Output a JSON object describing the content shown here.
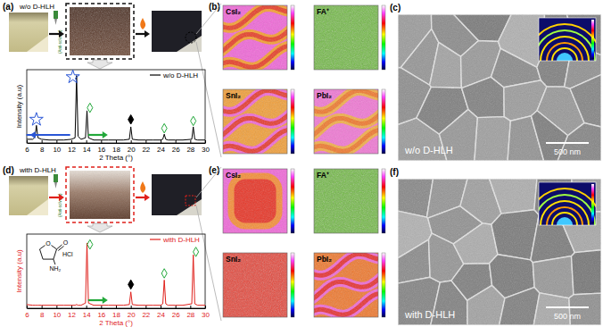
{
  "chart_data": [
    {
      "type": "line",
      "x": [
        6,
        6.8,
        7.1,
        7.3,
        7.5,
        8,
        9,
        10,
        11,
        12,
        12.5,
        12.7,
        12.9,
        13.3,
        13.9,
        14.1,
        14.3,
        15,
        16,
        17,
        18,
        19,
        19.8,
        20,
        20.2,
        21,
        22,
        23,
        24,
        24.3,
        24.5,
        24.7,
        25,
        26,
        27,
        28.2,
        28.4,
        28.6,
        29,
        30
      ],
      "series": [
        {
          "name": "w/o D-HLH",
          "color": "#000000",
          "values": [
            5,
            5,
            8,
            24,
            7,
            5,
            4,
            4,
            4,
            5,
            7,
            92,
            9,
            5,
            7,
            44,
            7,
            4,
            4,
            4,
            4,
            4,
            5,
            22,
            5,
            4,
            4,
            4,
            4,
            5,
            12,
            5,
            4,
            4,
            4,
            5,
            22,
            5,
            4,
            4
          ]
        }
      ],
      "xlim": [
        6,
        30
      ],
      "xticks": [
        6,
        8,
        10,
        12,
        14,
        16,
        18,
        20,
        22,
        24,
        26,
        28,
        30
      ],
      "ylim": [
        0,
        100
      ],
      "x_label": "2 Theta (°)",
      "y_label": "Intensity (a.u)",
      "tick_labels": "x",
      "legend": "upper right",
      "peak_markers": [
        {
          "x": 7.3,
          "y": 32,
          "marker": "star-open",
          "color": "#2a56d6"
        },
        {
          "x": 12.2,
          "y": 90,
          "marker": "star-open",
          "color": "#2a56d6"
        },
        {
          "x": 14.5,
          "y": 48,
          "marker": "diamond-open",
          "color": "#22a83a"
        },
        {
          "x": 20,
          "y": 32,
          "marker": "diamond-filled",
          "color": "#000000"
        },
        {
          "x": 24.5,
          "y": 20,
          "marker": "diamond-open",
          "color": "#22a83a"
        },
        {
          "x": 28.4,
          "y": 30,
          "marker": "diamond-open",
          "color": "#22a83a"
        }
      ]
    },
    {
      "type": "line",
      "x": [
        6,
        6.8,
        7.1,
        7.3,
        7.5,
        8,
        9,
        10,
        11,
        12,
        12.5,
        12.7,
        12.9,
        13.3,
        13.9,
        14.1,
        14.3,
        15,
        16,
        17,
        18,
        19,
        19.8,
        20,
        20.2,
        21,
        22,
        23,
        24,
        24.3,
        24.5,
        24.7,
        25,
        26,
        27,
        28.2,
        28.4,
        28.6,
        29,
        30
      ],
      "series": [
        {
          "name": "with D-HLH",
          "color": "#e0201b",
          "values": [
            5,
            4,
            4,
            4,
            4,
            4,
            4,
            4,
            4,
            4,
            4,
            5,
            4,
            4,
            7,
            88,
            7,
            4,
            4,
            4,
            4,
            4,
            5,
            22,
            5,
            4,
            4,
            4,
            4,
            6,
            38,
            6,
            4,
            4,
            4,
            6,
            72,
            6,
            4,
            4
          ]
        }
      ],
      "xlim": [
        6,
        30
      ],
      "xticks": [
        6,
        8,
        10,
        12,
        14,
        16,
        18,
        20,
        22,
        24,
        26,
        28,
        30
      ],
      "ylim": [
        0,
        100
      ],
      "x_label": "2 Theta (°)",
      "y_label": "Intensity (a.u)",
      "tick_labels": "x",
      "legend": "upper right",
      "peak_markers": [
        {
          "x": 14.5,
          "y": 86,
          "marker": "diamond-open",
          "color": "#22a83a"
        },
        {
          "x": 20,
          "y": 32,
          "marker": "diamond-filled",
          "color": "#000000"
        },
        {
          "x": 24.5,
          "y": 47,
          "marker": "diamond-open",
          "color": "#22a83a"
        },
        {
          "x": 28.75,
          "y": 76,
          "marker": "diamond-open",
          "color": "#22a83a"
        }
      ]
    }
  ],
  "figure": {
    "panel_labels": [
      "(a)",
      "(b)",
      "(c)",
      "(d)",
      "(e)",
      "(f)"
    ],
    "conditions": [
      "w/o D-HLH",
      "with D-HLH"
    ],
    "anti_solvent": "(Anti-solvent)",
    "map_labels": [
      "CsI₂",
      "FA⁺",
      "SnI₂",
      "PbI₂"
    ],
    "scale_bar": "500 nm",
    "molecule": {
      "salt": "HCl",
      "amine": "NH₂",
      "oxygen": "O"
    }
  }
}
